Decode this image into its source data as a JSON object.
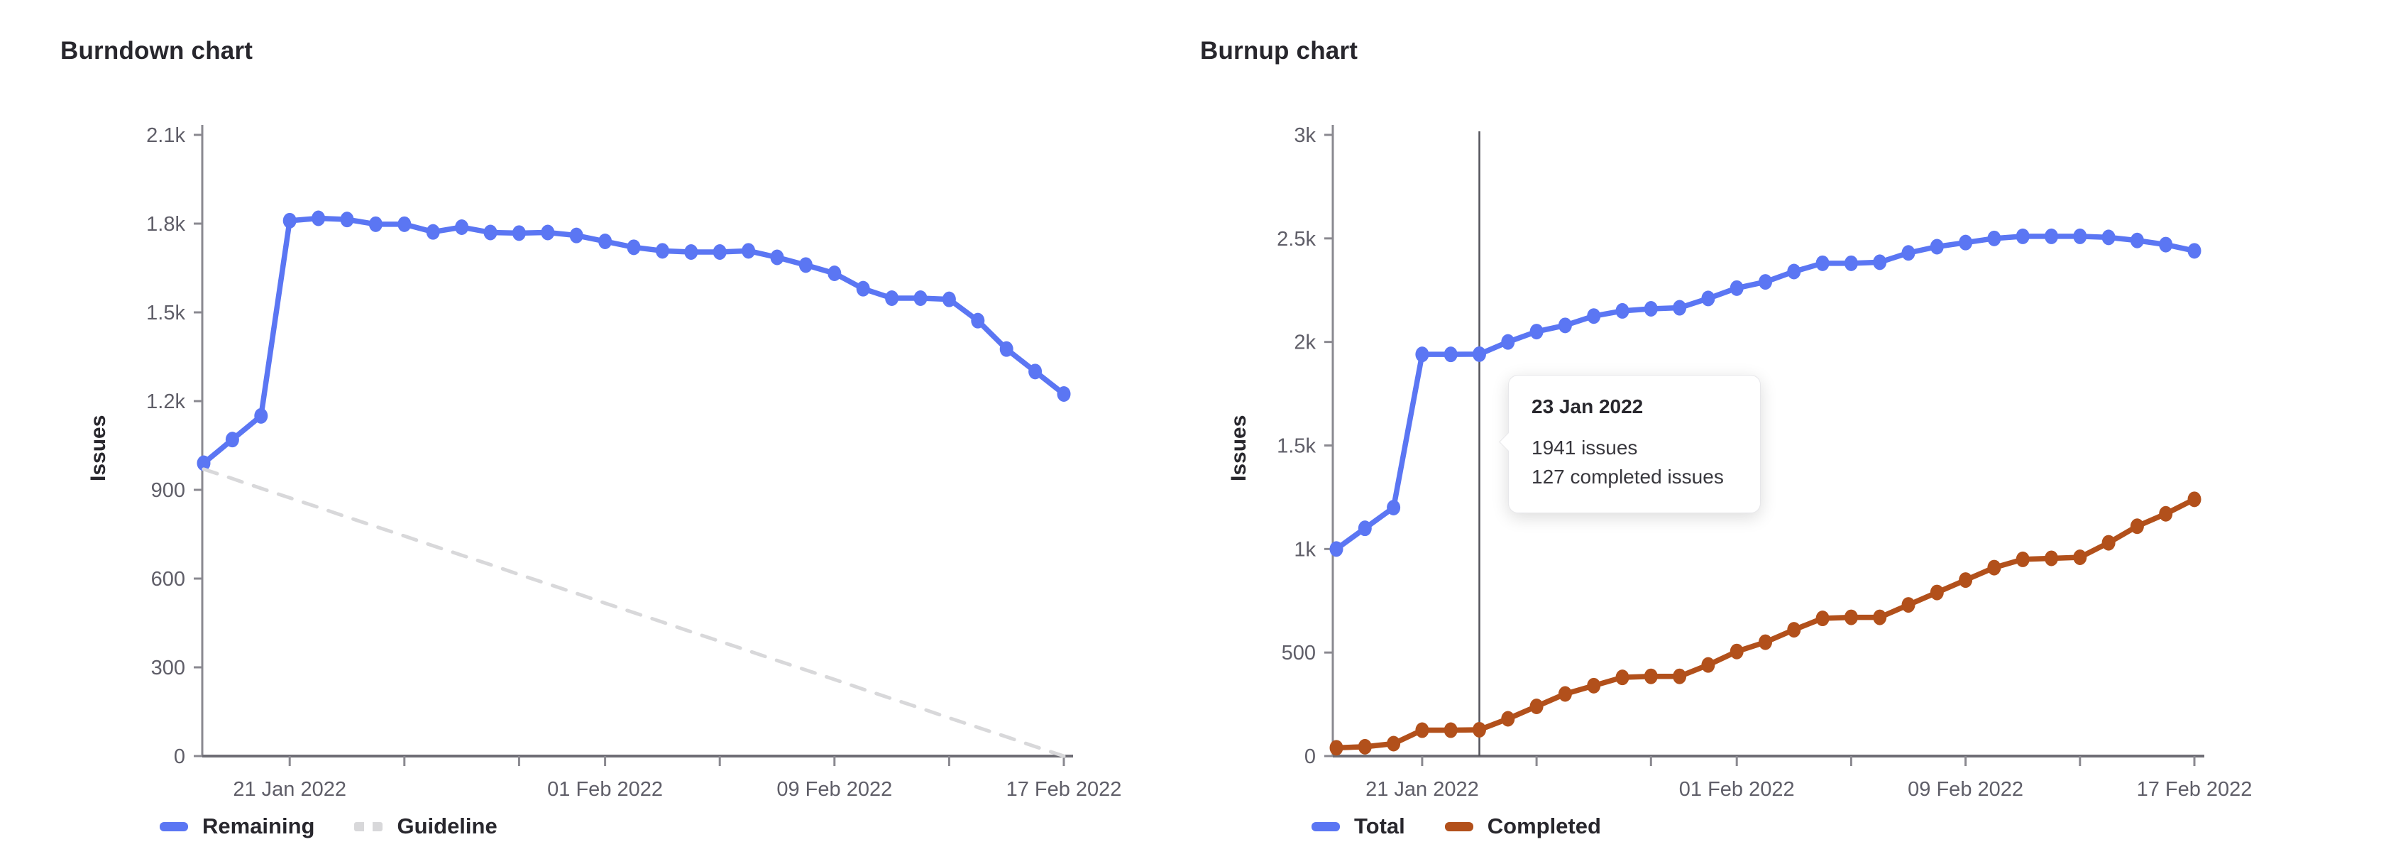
{
  "chart_data": [
    {
      "type": "line",
      "title": "Burndown chart",
      "xlabel": "",
      "ylabel": "Issues",
      "ylim": [
        0,
        2100
      ],
      "grid": false,
      "legend_position": "bottom-left",
      "y_ticks": [
        {
          "value": 0,
          "label": "0"
        },
        {
          "value": 300,
          "label": "300"
        },
        {
          "value": 600,
          "label": "600"
        },
        {
          "value": 900,
          "label": "900"
        },
        {
          "value": 1200,
          "label": "1.2k"
        },
        {
          "value": 1500,
          "label": "1.5k"
        },
        {
          "value": 1800,
          "label": "1.8k"
        },
        {
          "value": 2100,
          "label": "2.1k"
        }
      ],
      "x": [
        "18 Jan 2022",
        "19 Jan 2022",
        "20 Jan 2022",
        "21 Jan 2022",
        "22 Jan 2022",
        "23 Jan 2022",
        "24 Jan 2022",
        "25 Jan 2022",
        "26 Jan 2022",
        "27 Jan 2022",
        "28 Jan 2022",
        "29 Jan 2022",
        "30 Jan 2022",
        "31 Jan 2022",
        "01 Feb 2022",
        "02 Feb 2022",
        "03 Feb 2022",
        "04 Feb 2022",
        "05 Feb 2022",
        "06 Feb 2022",
        "07 Feb 2022",
        "08 Feb 2022",
        "09 Feb 2022",
        "10 Feb 2022",
        "11 Feb 2022",
        "12 Feb 2022",
        "13 Feb 2022",
        "14 Feb 2022",
        "15 Feb 2022",
        "16 Feb 2022",
        "17 Feb 2022"
      ],
      "x_ticks": [
        {
          "day": 3,
          "label": "21 Jan 2022"
        },
        {
          "day": 7,
          "label": ""
        },
        {
          "day": 11,
          "label": ""
        },
        {
          "day": 14,
          "label": "01 Feb 2022"
        },
        {
          "day": 18,
          "label": ""
        },
        {
          "day": 22,
          "label": "09 Feb 2022"
        },
        {
          "day": 26,
          "label": ""
        },
        {
          "day": 30,
          "label": "17 Feb 2022"
        }
      ],
      "series": [
        {
          "name": "Remaining",
          "color": "#5b76f3",
          "style": "solid",
          "markers": true,
          "values": [
            990,
            1070,
            1150,
            1810,
            1818,
            1814,
            1798,
            1798,
            1772,
            1788,
            1770,
            1768,
            1770,
            1760,
            1740,
            1720,
            1708,
            1704,
            1704,
            1708,
            1686,
            1660,
            1632,
            1580,
            1548,
            1548,
            1544,
            1472,
            1376,
            1300,
            1224
          ]
        },
        {
          "name": "Guideline",
          "color": "#d8d8da",
          "style": "dashed",
          "markers": false,
          "values": [
            970,
            938,
            905,
            873,
            841,
            808,
            776,
            744,
            711,
            679,
            647,
            614,
            582,
            550,
            517,
            485,
            453,
            420,
            388,
            356,
            323,
            291,
            259,
            226,
            194,
            162,
            129,
            97,
            65,
            32,
            0
          ]
        }
      ]
    },
    {
      "type": "line",
      "title": "Burnup chart",
      "xlabel": "",
      "ylabel": "Issues",
      "ylim": [
        0,
        3000
      ],
      "grid": false,
      "legend_position": "bottom-left",
      "crosshair_day": 5,
      "tooltip": {
        "date": "23 Jan 2022",
        "lines": [
          "1941 issues",
          "127 completed issues"
        ]
      },
      "y_ticks": [
        {
          "value": 0,
          "label": "0"
        },
        {
          "value": 500,
          "label": "500"
        },
        {
          "value": 1000,
          "label": "1k"
        },
        {
          "value": 1500,
          "label": "1.5k"
        },
        {
          "value": 2000,
          "label": "2k"
        },
        {
          "value": 2500,
          "label": "2.5k"
        },
        {
          "value": 3000,
          "label": "3k"
        }
      ],
      "x": [
        "18 Jan 2022",
        "19 Jan 2022",
        "20 Jan 2022",
        "21 Jan 2022",
        "22 Jan 2022",
        "23 Jan 2022",
        "24 Jan 2022",
        "25 Jan 2022",
        "26 Jan 2022",
        "27 Jan 2022",
        "28 Jan 2022",
        "29 Jan 2022",
        "30 Jan 2022",
        "31 Jan 2022",
        "01 Feb 2022",
        "02 Feb 2022",
        "03 Feb 2022",
        "04 Feb 2022",
        "05 Feb 2022",
        "06 Feb 2022",
        "07 Feb 2022",
        "08 Feb 2022",
        "09 Feb 2022",
        "10 Feb 2022",
        "11 Feb 2022",
        "12 Feb 2022",
        "13 Feb 2022",
        "14 Feb 2022",
        "15 Feb 2022",
        "16 Feb 2022",
        "17 Feb 2022"
      ],
      "x_ticks": [
        {
          "day": 3,
          "label": "21 Jan 2022"
        },
        {
          "day": 7,
          "label": ""
        },
        {
          "day": 11,
          "label": ""
        },
        {
          "day": 14,
          "label": "01 Feb 2022"
        },
        {
          "day": 18,
          "label": ""
        },
        {
          "day": 22,
          "label": "09 Feb 2022"
        },
        {
          "day": 26,
          "label": ""
        },
        {
          "day": 30,
          "label": "17 Feb 2022"
        }
      ],
      "series": [
        {
          "name": "Total",
          "color": "#5b76f3",
          "style": "solid",
          "markers": true,
          "values": [
            1000,
            1100,
            1200,
            1940,
            1940,
            1941,
            2000,
            2050,
            2080,
            2125,
            2150,
            2160,
            2165,
            2210,
            2260,
            2290,
            2340,
            2380,
            2380,
            2385,
            2430,
            2460,
            2480,
            2500,
            2510,
            2510,
            2510,
            2505,
            2490,
            2470,
            2440
          ]
        },
        {
          "name": "Completed",
          "color": "#b2501b",
          "style": "solid",
          "markers": true,
          "values": [
            40,
            45,
            60,
            125,
            125,
            127,
            180,
            240,
            300,
            340,
            380,
            385,
            385,
            440,
            505,
            550,
            610,
            665,
            670,
            670,
            730,
            790,
            850,
            910,
            950,
            955,
            960,
            1030,
            1110,
            1170,
            1240
          ]
        }
      ]
    }
  ]
}
